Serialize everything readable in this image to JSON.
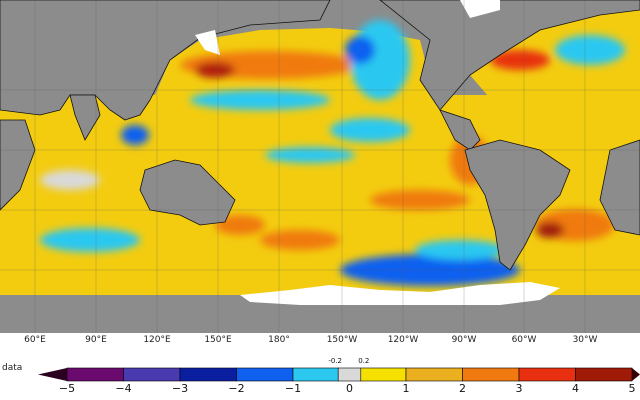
{
  "map": {
    "longitude_labels": [
      "60°E",
      "90°E",
      "120°E",
      "150°E",
      "180°",
      "150°W",
      "120°W",
      "90°W",
      "60°W",
      "30°W"
    ],
    "colors": {
      "land": "#8c8c8c",
      "ice": "#ffffff",
      "neutral": "#d9d9d9"
    }
  },
  "colorbar": {
    "label": "data",
    "ticks": [
      "−5",
      "−4",
      "−3",
      "−2",
      "−1",
      "0",
      "1",
      "2",
      "3",
      "4",
      "5"
    ],
    "small_ticks": [
      "-0.2",
      "0.2"
    ],
    "range": [
      -5,
      5
    ],
    "bins": [
      {
        "from": -5,
        "to": -4,
        "color": "#6a0a6e"
      },
      {
        "from": -4,
        "to": -3,
        "color": "#4a3ab0"
      },
      {
        "from": -3,
        "to": -2,
        "color": "#0a1fa0"
      },
      {
        "from": -2,
        "to": -1,
        "color": "#1060f0"
      },
      {
        "from": -1,
        "to": -0.2,
        "color": "#2cc8f0"
      },
      {
        "from": -0.2,
        "to": 0.2,
        "color": "#d9d9d9"
      },
      {
        "from": 0.2,
        "to": 1,
        "color": "#f5e000"
      },
      {
        "from": 1,
        "to": 2,
        "color": "#eab020"
      },
      {
        "from": 2,
        "to": 3,
        "color": "#f07a10"
      },
      {
        "from": 3,
        "to": 4,
        "color": "#e83010"
      },
      {
        "from": 4,
        "to": 5,
        "color": "#a01a08"
      }
    ],
    "under_color": "#2a0020",
    "over_color": "#3a0000"
  }
}
